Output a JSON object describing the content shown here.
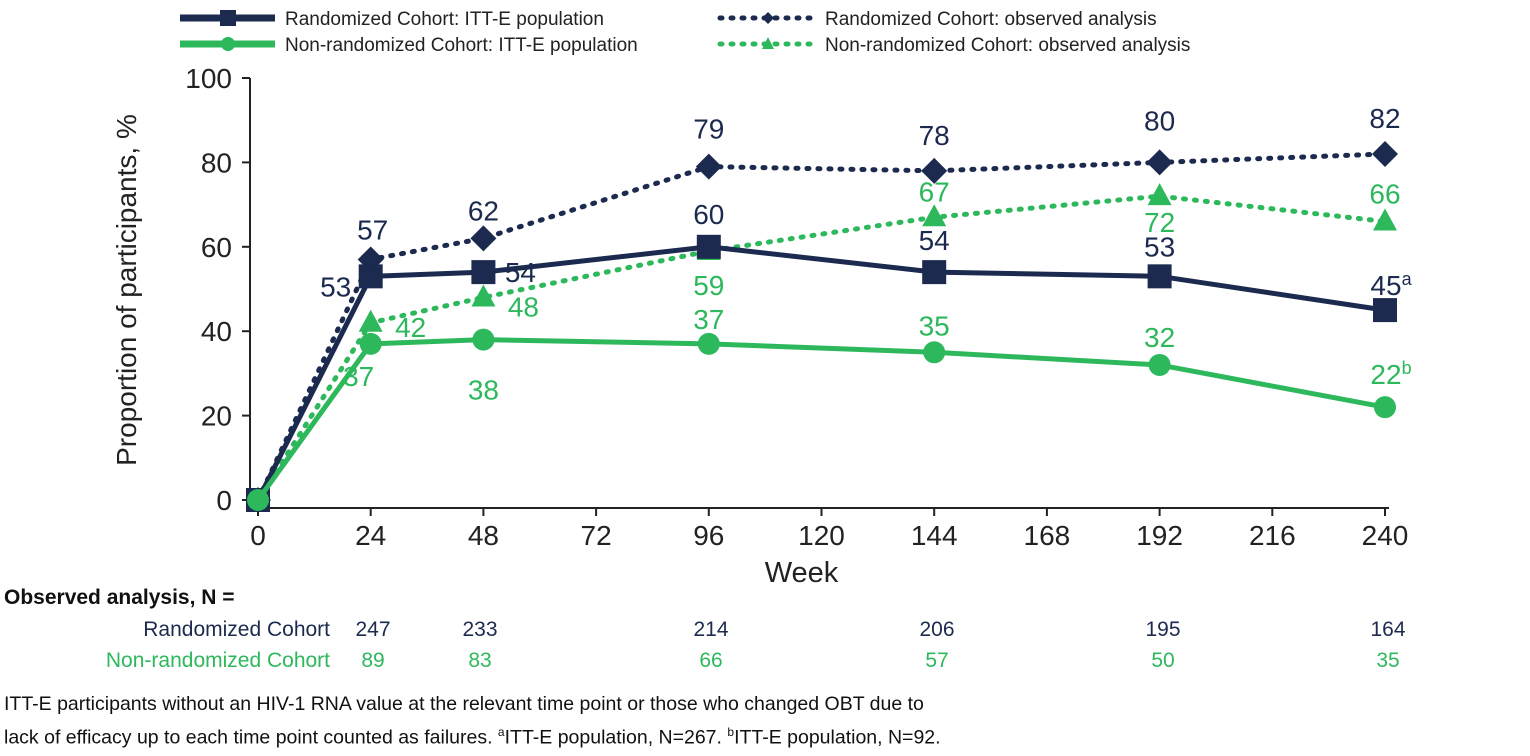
{
  "colors": {
    "randomized": "#1b2a4e",
    "non_randomized": "#2eb85c",
    "axis": "#222222"
  },
  "chart_data": {
    "type": "line",
    "xlabel": "Week",
    "ylabel": "Proportion of participants, %",
    "xlim": [
      0,
      240
    ],
    "ylim": [
      0,
      100
    ],
    "xticks": [
      0,
      24,
      48,
      72,
      96,
      120,
      144,
      168,
      192,
      216,
      240
    ],
    "yticks": [
      0,
      20,
      40,
      60,
      80,
      100
    ],
    "grid": false,
    "legend_position": "top",
    "x": [
      0,
      24,
      48,
      96,
      144,
      192,
      240
    ],
    "series": [
      {
        "name": "Randomized Cohort: observed analysis",
        "color": "#1b2a4e",
        "style": "dotted",
        "marker": "diamond",
        "values": [
          0,
          57,
          62,
          79,
          78,
          80,
          82
        ],
        "labels": [
          "",
          "57",
          "62",
          "79",
          "78",
          "80",
          "82"
        ],
        "sups": [
          "",
          "",
          "",
          "",
          "",
          "",
          ""
        ]
      },
      {
        "name": "Non-randomized Cohort: observed analysis",
        "color": "#2eb85c",
        "style": "dotted",
        "marker": "triangle",
        "values": [
          0,
          42,
          48,
          59,
          67,
          72,
          66
        ],
        "labels": [
          "",
          "42",
          "48",
          "59",
          "67",
          "72",
          "66"
        ],
        "sups": [
          "",
          "",
          "",
          "",
          "",
          "",
          ""
        ]
      },
      {
        "name": "Randomized Cohort: ITT-E population",
        "color": "#1b2a4e",
        "style": "solid",
        "marker": "square",
        "values": [
          0,
          53,
          54,
          60,
          54,
          53,
          45
        ],
        "labels": [
          "",
          "53",
          "54",
          "60",
          "54",
          "53",
          "45"
        ],
        "sups": [
          "",
          "",
          "",
          "",
          "",
          "",
          "a"
        ]
      },
      {
        "name": "Non-randomized Cohort: ITT-E population",
        "color": "#2eb85c",
        "style": "solid",
        "marker": "circle",
        "values": [
          0,
          37,
          38,
          37,
          35,
          32,
          22
        ],
        "labels": [
          "",
          "37",
          "38",
          "37",
          "35",
          "32",
          "22"
        ],
        "sups": [
          "",
          "",
          "",
          "",
          "",
          "",
          "b"
        ]
      }
    ],
    "n_table": {
      "title": "Observed analysis, N =",
      "rows": [
        {
          "label": "Randomized Cohort",
          "color": "#1b2a4e",
          "values": [
            "247",
            "233",
            "214",
            "206",
            "195",
            "164"
          ]
        },
        {
          "label": "Non-randomized Cohort",
          "color": "#2eb85c",
          "values": [
            "89",
            "83",
            "66",
            "57",
            "50",
            "35"
          ]
        }
      ]
    }
  },
  "footnote": {
    "line1": "ITT-E participants without an HIV-1 RNA value at the relevant time point or those who changed OBT due to",
    "line2a": "lack of efficacy up to each time point counted as failures. ",
    "sup_a": "a",
    "line2b": "ITT-E population, N=267. ",
    "sup_b": "b",
    "line2c": "ITT-E population, N=92."
  }
}
